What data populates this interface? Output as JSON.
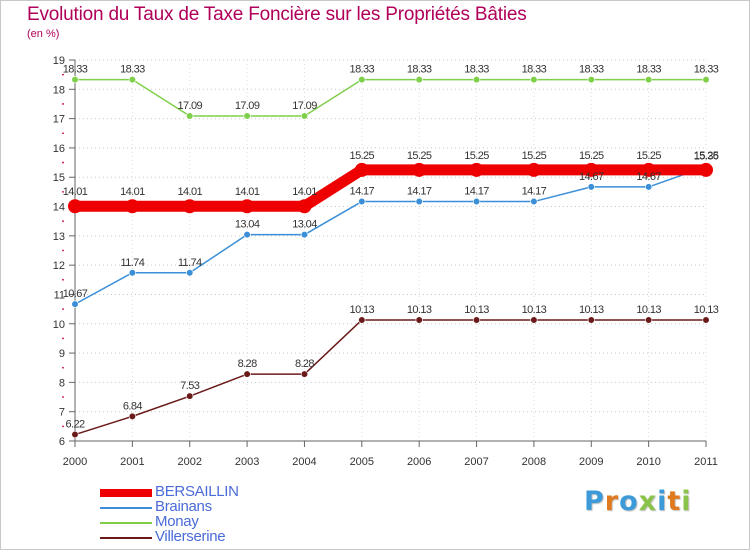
{
  "title": "Evolution du Taux de Taxe Foncière sur les Propriétés Bâties",
  "unit": "(en %)",
  "logo": "Proxiti",
  "chart_data": {
    "type": "line",
    "title": "Evolution du Taux de Taxe Foncière sur les Propriétés Bâties",
    "ylabel": "(en %)",
    "xlabel": "",
    "x": [
      "2000",
      "2001",
      "2002",
      "2003",
      "2004",
      "2005",
      "2006",
      "2007",
      "2008",
      "2009",
      "2010",
      "2011"
    ],
    "ylim": [
      6,
      19
    ],
    "yticks": [
      6,
      7,
      8,
      9,
      10,
      11,
      12,
      13,
      14,
      15,
      16,
      17,
      18,
      19
    ],
    "grid": "horizontal dotted",
    "legend": "bottom-left",
    "series": [
      {
        "name": "Monay",
        "color": "#7fcf4a",
        "values": [
          18.33,
          18.33,
          17.09,
          17.09,
          17.09,
          18.33,
          18.33,
          18.33,
          18.33,
          18.33,
          18.33,
          18.33
        ],
        "labels": [
          "18.33",
          "18.33",
          "17.09",
          "17.09",
          "17.09",
          "18.33",
          "18.33",
          "18.33",
          "18.33",
          "18.33",
          "18.33",
          "18.33"
        ]
      },
      {
        "name": "Villerserine",
        "color": "#6b1a1a",
        "values": [
          6.22,
          6.84,
          7.53,
          8.28,
          8.28,
          10.13,
          10.13,
          10.13,
          10.13,
          10.13,
          10.13,
          10.13
        ],
        "labels": [
          "6.22",
          "6.84",
          "7.53",
          "8.28",
          "8.28",
          "10.13",
          "10.13",
          "10.13",
          "10.13",
          "10.13",
          "10.13",
          "10.13"
        ]
      },
      {
        "name": "Brainans",
        "color": "#3a8fd8",
        "values": [
          10.67,
          11.74,
          11.74,
          13.04,
          13.04,
          14.17,
          14.17,
          14.17,
          14.17,
          14.67,
          14.67,
          15.36
        ],
        "labels": [
          "10.67",
          "11.74",
          "11.74",
          "13.04",
          "13.04",
          "14.17",
          "14.17",
          "14.17",
          "14.17",
          "14.67",
          "14.67",
          "15.36"
        ]
      },
      {
        "name": "BERSAILLIN",
        "color": "#ee0000",
        "values": [
          14.01,
          14.01,
          14.01,
          14.01,
          14.01,
          15.25,
          15.25,
          15.25,
          15.25,
          15.25,
          15.25,
          15.25
        ],
        "labels": [
          "14.01",
          "14.01",
          "14.01",
          "14.01",
          "14.01",
          "15.25",
          "15.25",
          "15.25",
          "15.25",
          "15.25",
          "15.25",
          "15.25"
        ]
      }
    ],
    "legend_order": [
      "BERSAILLIN",
      "Brainans",
      "Monay",
      "Villerserine"
    ]
  }
}
